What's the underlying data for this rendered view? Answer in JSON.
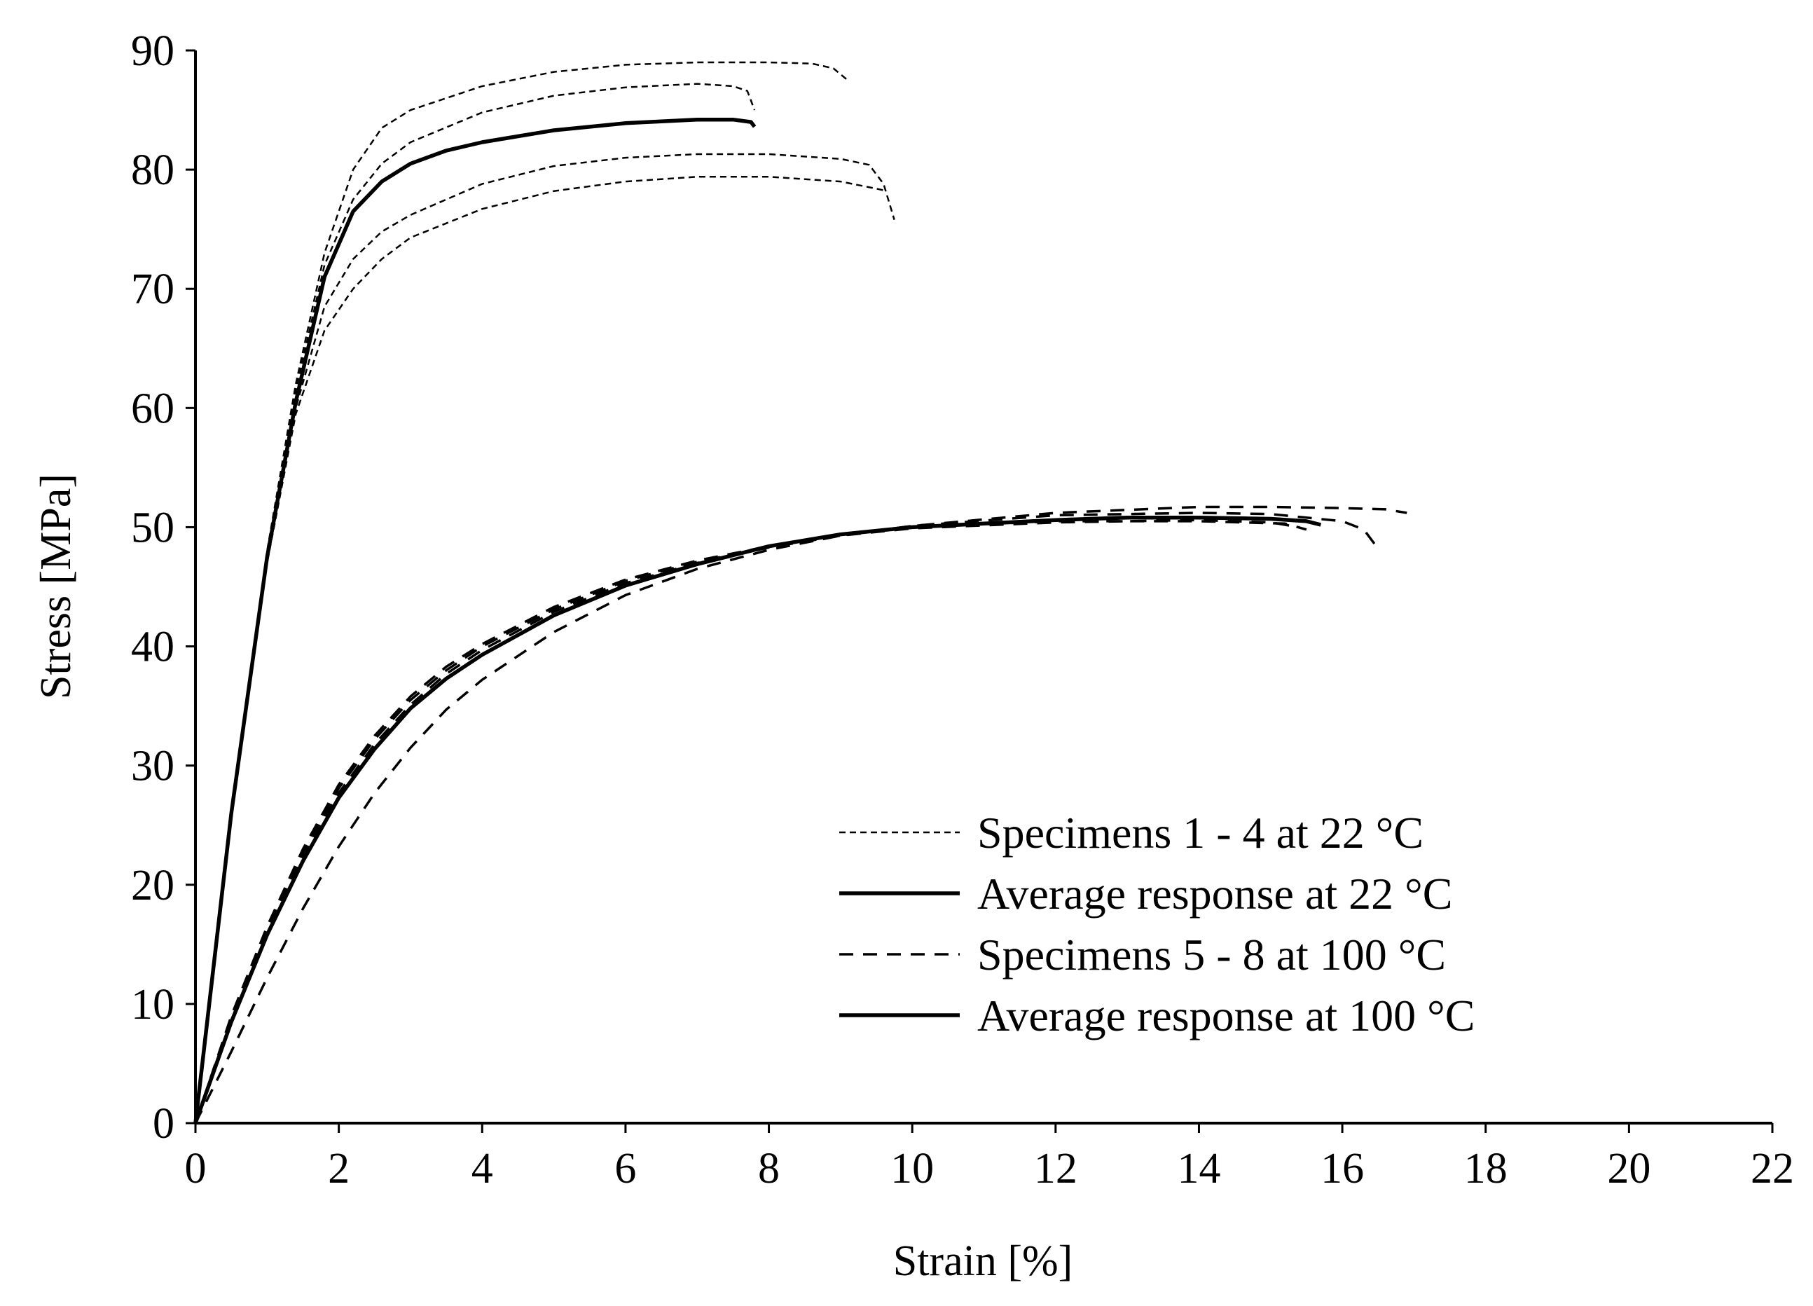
{
  "chart_data": {
    "type": "line",
    "title": "",
    "xlabel": "Strain [%]",
    "ylabel": "Stress [MPa]",
    "xlim": [
      0,
      22
    ],
    "ylim": [
      0,
      90
    ],
    "xticks": [
      "0",
      "2",
      "4",
      "6",
      "8",
      "10",
      "12",
      "14",
      "16",
      "18",
      "20",
      "22"
    ],
    "yticks": [
      "0",
      "10",
      "20",
      "30",
      "40",
      "50",
      "60",
      "70",
      "80",
      "90"
    ],
    "grid": false,
    "legend_position": "bottom-right",
    "legend": [
      {
        "label": "Specimens  1 - 4 at 22 °C",
        "style": "dotted"
      },
      {
        "label": "Average response at 22 °C",
        "style": "solid"
      },
      {
        "label": "Specimens  5 - 8 at 100 °C",
        "style": "dashed"
      },
      {
        "label": "Average response at 100 °C",
        "style": "solid"
      }
    ],
    "series": [
      {
        "name": "Specimen 1 at 22 °C",
        "style": "dotted",
        "points": [
          [
            0,
            0
          ],
          [
            0.5,
            26
          ],
          [
            1,
            48
          ],
          [
            1.4,
            62
          ],
          [
            1.8,
            73
          ],
          [
            2.2,
            80
          ],
          [
            2.6,
            83.5
          ],
          [
            3,
            85
          ],
          [
            4,
            87
          ],
          [
            5,
            88.2
          ],
          [
            6,
            88.8
          ],
          [
            7,
            89
          ],
          [
            8,
            89
          ],
          [
            8.6,
            88.9
          ],
          [
            8.9,
            88.5
          ],
          [
            9.1,
            87.5
          ]
        ]
      },
      {
        "name": "Specimen 2 at 22 °C",
        "style": "dotted",
        "points": [
          [
            0,
            0
          ],
          [
            0.5,
            26
          ],
          [
            1,
            48
          ],
          [
            1.4,
            61.5
          ],
          [
            1.8,
            72
          ],
          [
            2.2,
            77.5
          ],
          [
            2.6,
            80.5
          ],
          [
            3,
            82.3
          ],
          [
            4,
            84.8
          ],
          [
            5,
            86.2
          ],
          [
            6,
            86.9
          ],
          [
            7,
            87.2
          ],
          [
            7.5,
            87
          ],
          [
            7.7,
            86.6
          ],
          [
            7.8,
            85
          ]
        ]
      },
      {
        "name": "Specimen 3 at 22 °C",
        "style": "dotted",
        "points": [
          [
            0,
            0
          ],
          [
            0.5,
            26
          ],
          [
            1,
            47.5
          ],
          [
            1.4,
            60
          ],
          [
            1.8,
            68.5
          ],
          [
            2.2,
            72.5
          ],
          [
            2.6,
            74.8
          ],
          [
            3,
            76.2
          ],
          [
            4,
            78.8
          ],
          [
            5,
            80.3
          ],
          [
            6,
            81
          ],
          [
            7,
            81.3
          ],
          [
            8,
            81.3
          ],
          [
            9,
            80.9
          ],
          [
            9.4,
            80.4
          ],
          [
            9.6,
            78.8
          ],
          [
            9.75,
            75.8
          ]
        ]
      },
      {
        "name": "Specimen 4 at 22 °C",
        "style": "dotted",
        "points": [
          [
            0,
            0
          ],
          [
            0.5,
            26
          ],
          [
            1,
            47
          ],
          [
            1.4,
            59.5
          ],
          [
            1.8,
            66.5
          ],
          [
            2.2,
            70
          ],
          [
            2.6,
            72.5
          ],
          [
            3,
            74.3
          ],
          [
            4,
            76.7
          ],
          [
            5,
            78.2
          ],
          [
            6,
            79
          ],
          [
            7,
            79.4
          ],
          [
            8,
            79.4
          ],
          [
            9,
            79
          ],
          [
            9.5,
            78.4
          ],
          [
            9.65,
            78.2
          ]
        ]
      },
      {
        "name": "Average response at 22 °C",
        "style": "solid",
        "points": [
          [
            0,
            0
          ],
          [
            0.5,
            26
          ],
          [
            1,
            47.5
          ],
          [
            1.4,
            60.5
          ],
          [
            1.8,
            71
          ],
          [
            2.2,
            76.5
          ],
          [
            2.6,
            79
          ],
          [
            3,
            80.5
          ],
          [
            3.5,
            81.6
          ],
          [
            4,
            82.3
          ],
          [
            5,
            83.3
          ],
          [
            6,
            83.9
          ],
          [
            7,
            84.2
          ],
          [
            7.5,
            84.2
          ],
          [
            7.75,
            84
          ],
          [
            7.8,
            83.6
          ]
        ]
      },
      {
        "name": "Specimen 5 at 100 °C",
        "style": "dashed",
        "points": [
          [
            0,
            0
          ],
          [
            0.5,
            9
          ],
          [
            1,
            16.5
          ],
          [
            1.5,
            23
          ],
          [
            2,
            28.4
          ],
          [
            2.5,
            32.5
          ],
          [
            3,
            35.8
          ],
          [
            3.5,
            38.3
          ],
          [
            4,
            40.2
          ],
          [
            5,
            43.3
          ],
          [
            6,
            45.6
          ],
          [
            7,
            47.2
          ],
          [
            8,
            48.4
          ],
          [
            9,
            49.4
          ],
          [
            10,
            50
          ],
          [
            12,
            50.5
          ],
          [
            14,
            50.5
          ],
          [
            15.2,
            50.3
          ],
          [
            15.5,
            49.8
          ]
        ]
      },
      {
        "name": "Specimen 6 at 100 °C",
        "style": "dashed",
        "points": [
          [
            0,
            0
          ],
          [
            0.5,
            8.8
          ],
          [
            1,
            16.2
          ],
          [
            1.5,
            22.7
          ],
          [
            2,
            28.1
          ],
          [
            2.5,
            32.2
          ],
          [
            3,
            35.5
          ],
          [
            3.5,
            38
          ],
          [
            4,
            40
          ],
          [
            5,
            43.1
          ],
          [
            6,
            45.5
          ],
          [
            7,
            47.1
          ],
          [
            8,
            48.3
          ],
          [
            9,
            49.3
          ],
          [
            10,
            49.9
          ],
          [
            12,
            50.4
          ],
          [
            14,
            50.6
          ],
          [
            15,
            50.4
          ],
          [
            15.4,
            50
          ]
        ]
      },
      {
        "name": "Specimen 7 at 100 °C",
        "style": "dashed",
        "points": [
          [
            0,
            0
          ],
          [
            0.5,
            6
          ],
          [
            1,
            12.2
          ],
          [
            1.5,
            18
          ],
          [
            2,
            23.2
          ],
          [
            2.5,
            27.7
          ],
          [
            3,
            31.5
          ],
          [
            3.5,
            34.7
          ],
          [
            4,
            37.2
          ],
          [
            5,
            41.2
          ],
          [
            6,
            44.3
          ],
          [
            7,
            46.5
          ],
          [
            8,
            48.1
          ],
          [
            9,
            49.3
          ],
          [
            10,
            50.1
          ],
          [
            12,
            51
          ],
          [
            14,
            51.2
          ],
          [
            15,
            51.1
          ],
          [
            16,
            50.5
          ],
          [
            16.3,
            49.8
          ],
          [
            16.45,
            48.6
          ]
        ]
      },
      {
        "name": "Specimen 8 at 100 °C",
        "style": "dashed",
        "points": [
          [
            0,
            0
          ],
          [
            0.5,
            8.6
          ],
          [
            1,
            15.9
          ],
          [
            1.5,
            22.3
          ],
          [
            2,
            27.7
          ],
          [
            2.5,
            31.8
          ],
          [
            3,
            35.1
          ],
          [
            3.5,
            37.7
          ],
          [
            4,
            39.7
          ],
          [
            5,
            42.9
          ],
          [
            6,
            45.3
          ],
          [
            7,
            47
          ],
          [
            8,
            48.3
          ],
          [
            9,
            49.3
          ],
          [
            10,
            50.1
          ],
          [
            12,
            51.2
          ],
          [
            14,
            51.7
          ],
          [
            15,
            51.7
          ],
          [
            16,
            51.6
          ],
          [
            16.6,
            51.5
          ],
          [
            16.9,
            51.2
          ]
        ]
      },
      {
        "name": "Average response at 100 °C",
        "style": "solid",
        "points": [
          [
            0,
            0
          ],
          [
            0.5,
            8.5
          ],
          [
            1,
            15.8
          ],
          [
            1.5,
            22
          ],
          [
            2,
            27.3
          ],
          [
            2.5,
            31.4
          ],
          [
            3,
            34.8
          ],
          [
            3.5,
            37.3
          ],
          [
            4,
            39.3
          ],
          [
            5,
            42.6
          ],
          [
            6,
            45.1
          ],
          [
            7,
            46.9
          ],
          [
            8,
            48.4
          ],
          [
            9,
            49.4
          ],
          [
            10,
            50
          ],
          [
            12,
            50.6
          ],
          [
            13,
            50.8
          ],
          [
            14,
            50.8
          ],
          [
            15,
            50.7
          ],
          [
            15.5,
            50.5
          ],
          [
            15.7,
            50.2
          ]
        ]
      }
    ]
  }
}
